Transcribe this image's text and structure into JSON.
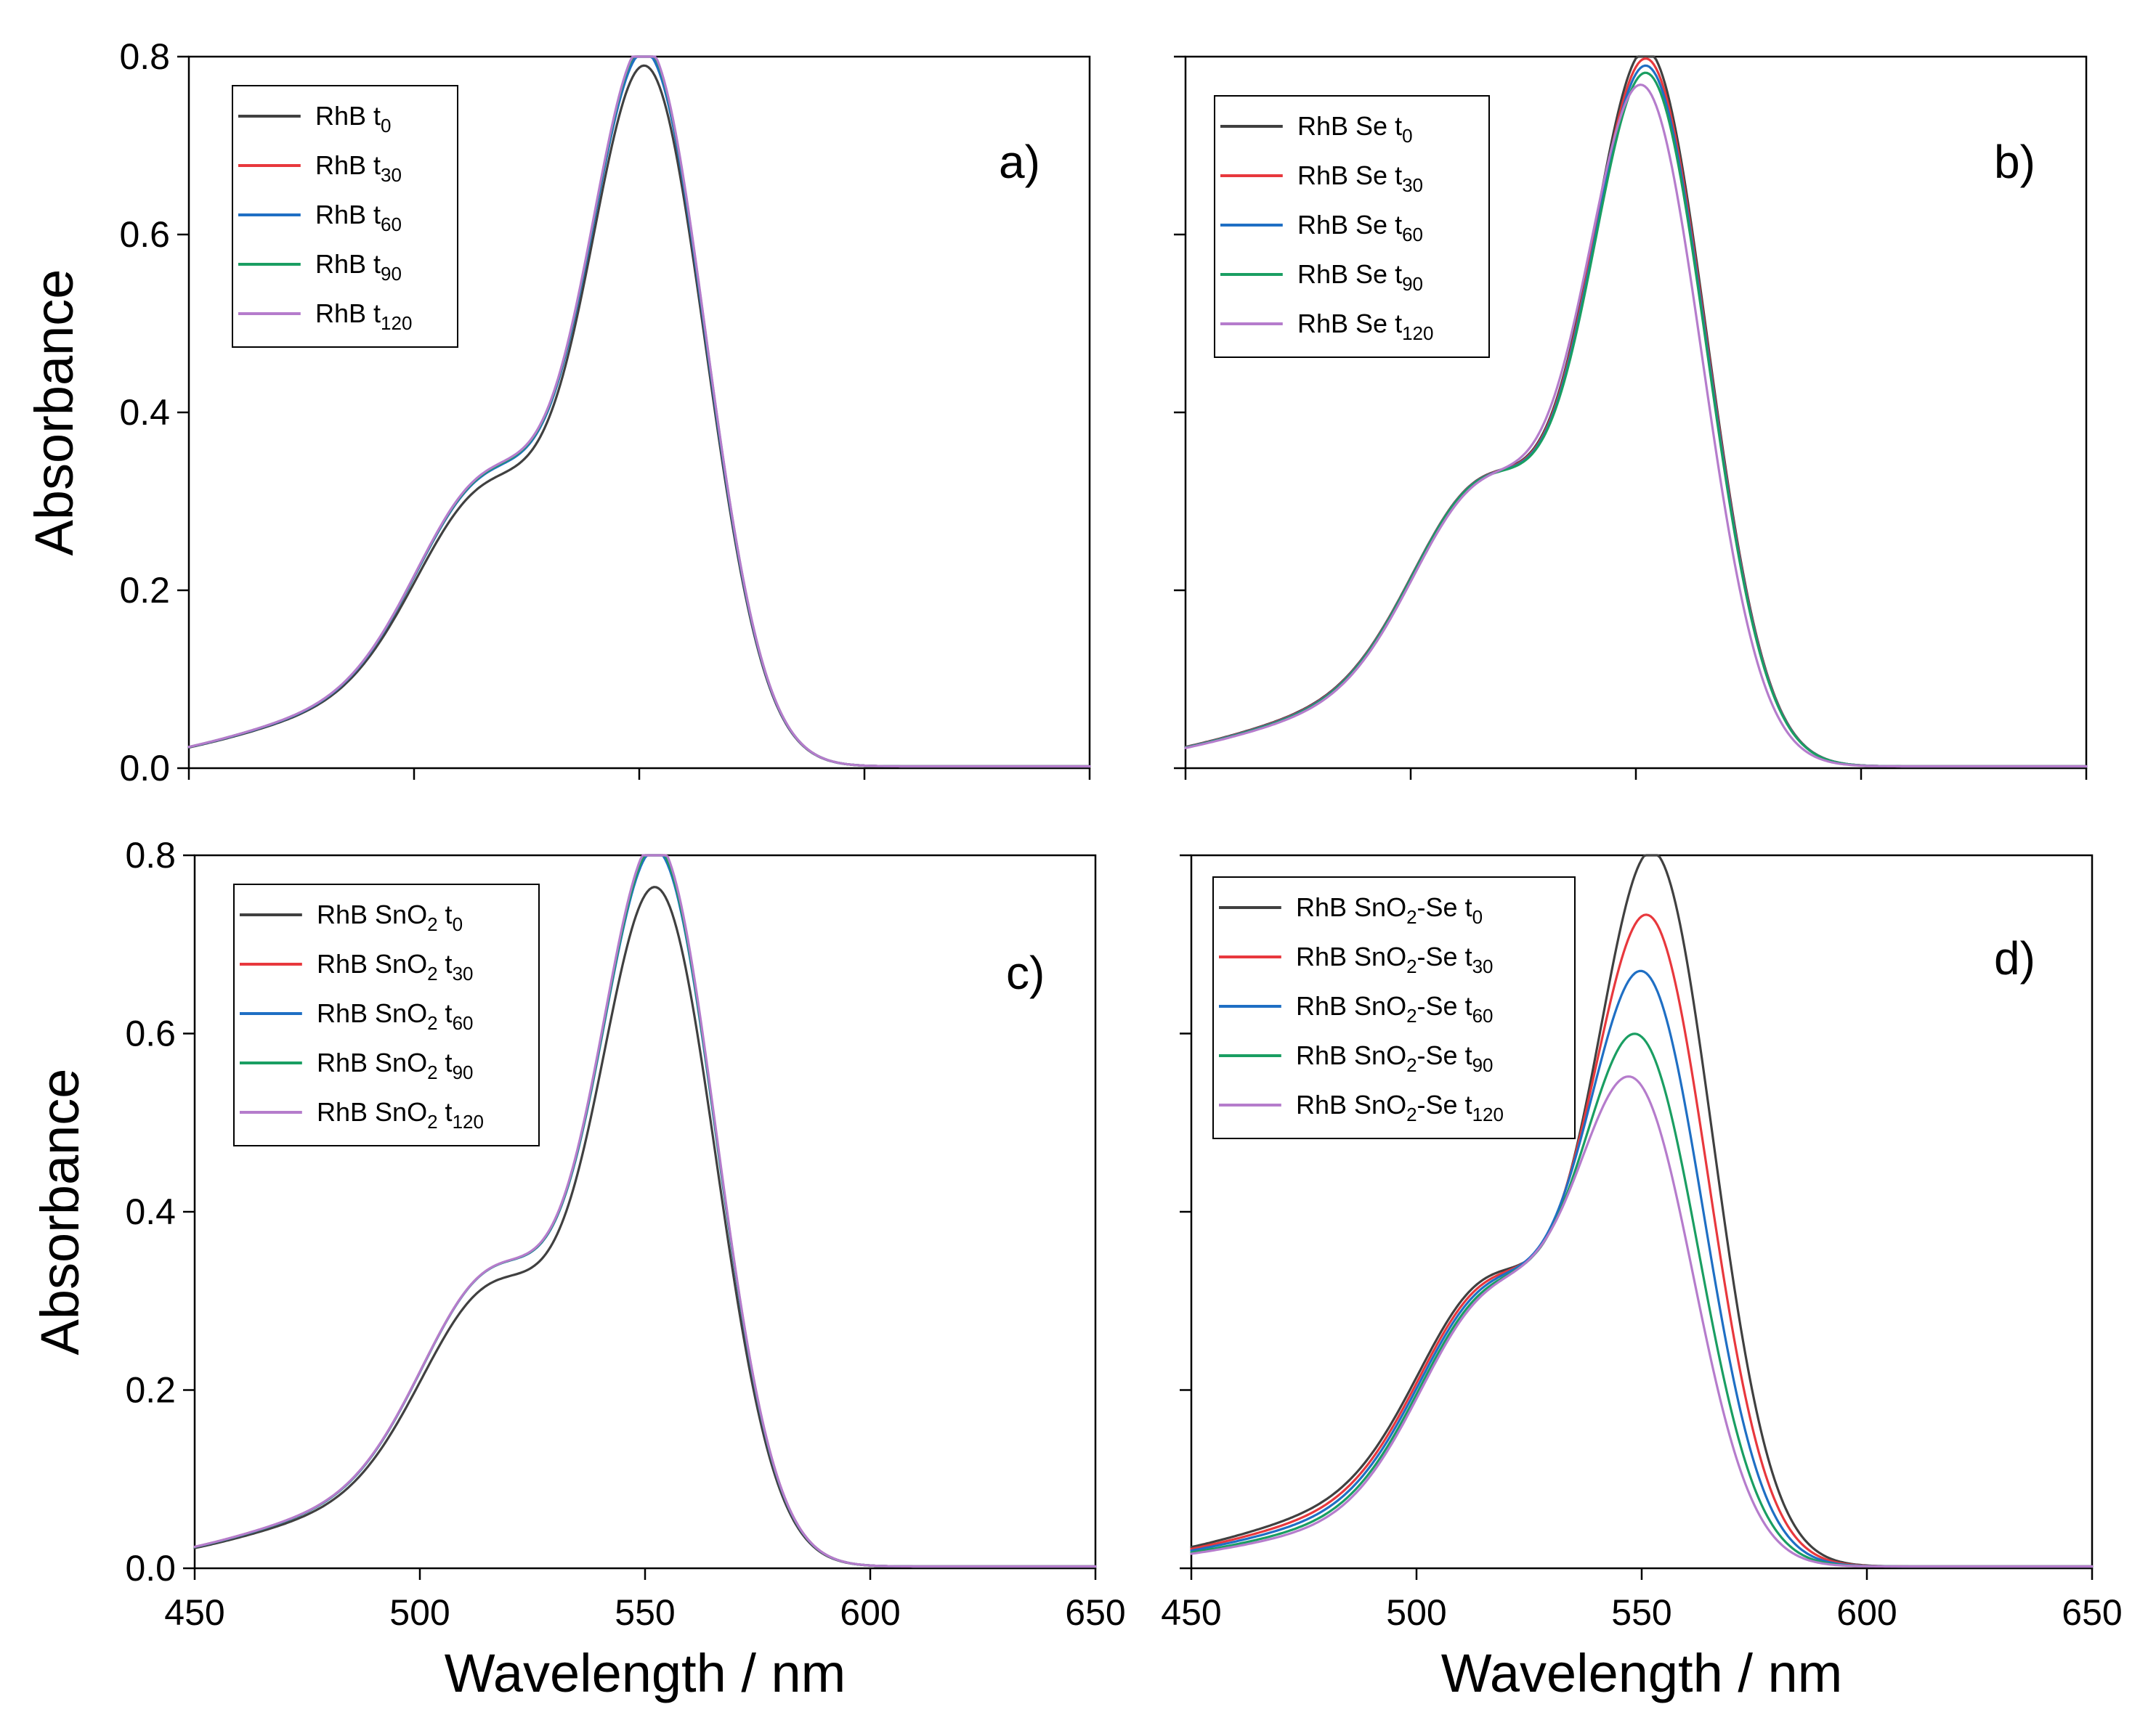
{
  "colors": {
    "t0": "#404040",
    "t30": "#e8383d",
    "t60": "#1f6fc4",
    "t90": "#1a9e62",
    "t120": "#b57ccc"
  },
  "chart_data": [
    {
      "id": "a",
      "type": "line",
      "panel_label": "a)",
      "xlabel": "",
      "ylabel": "Absorbance",
      "xlim": [
        450,
        650
      ],
      "ylim": [
        0,
        0.8
      ],
      "xticks": [
        450,
        500,
        550,
        600,
        650
      ],
      "yticks": [
        0.0,
        0.2,
        0.4,
        0.6,
        0.8
      ],
      "show_x_tick_labels": false,
      "show_y_tick_labels": true,
      "grid": false,
      "legend_position": "top-left",
      "series": [
        {
          "key": "t0",
          "name": "RhB t",
          "sub": "0",
          "color": "#404040",
          "peak_x": 552,
          "peak_y": 0.757,
          "shoulder_y": 0.285,
          "shoulder_shift": 0
        },
        {
          "key": "t30",
          "name": "RhB t",
          "sub": "30",
          "color": "#e8383d",
          "peak_x": 552,
          "peak_y": 0.776,
          "shoulder_y": 0.295,
          "shoulder_shift": 0
        },
        {
          "key": "t60",
          "name": "RhB t",
          "sub": "60",
          "color": "#1f6fc4",
          "peak_x": 552,
          "peak_y": 0.772,
          "shoulder_y": 0.295,
          "shoulder_shift": 0
        },
        {
          "key": "t90",
          "name": "RhB t",
          "sub": "90",
          "color": "#1a9e62",
          "peak_x": 552,
          "peak_y": 0.778,
          "shoulder_y": 0.296,
          "shoulder_shift": 0
        },
        {
          "key": "t120",
          "name": "RhB t",
          "sub": "120",
          "color": "#b57ccc",
          "peak_x": 552,
          "peak_y": 0.78,
          "shoulder_y": 0.297,
          "shoulder_shift": 0
        }
      ]
    },
    {
      "id": "b",
      "type": "line",
      "panel_label": "b)",
      "xlabel": "",
      "ylabel": "",
      "xlim": [
        450,
        650
      ],
      "ylim": [
        0,
        0.8
      ],
      "xticks": [
        450,
        500,
        550,
        600,
        650
      ],
      "yticks": [
        0.0,
        0.2,
        0.4,
        0.6,
        0.8
      ],
      "show_x_tick_labels": false,
      "show_y_tick_labels": false,
      "grid": false,
      "legend_position": "top-left",
      "series": [
        {
          "key": "t0",
          "name": "RhB Se t",
          "sub": "0",
          "color": "#404040",
          "peak_x": 553,
          "peak_y": 0.778,
          "shoulder_y": 0.29,
          "shoulder_shift": 0
        },
        {
          "key": "t30",
          "name": "RhB Se t",
          "sub": "30",
          "color": "#e8383d",
          "peak_x": 553,
          "peak_y": 0.768,
          "shoulder_y": 0.29,
          "shoulder_shift": 0
        },
        {
          "key": "t60",
          "name": "RhB Se t",
          "sub": "60",
          "color": "#1f6fc4",
          "peak_x": 553,
          "peak_y": 0.76,
          "shoulder_y": 0.29,
          "shoulder_shift": 0
        },
        {
          "key": "t90",
          "name": "RhB Se t",
          "sub": "90",
          "color": "#1a9e62",
          "peak_x": 553,
          "peak_y": 0.752,
          "shoulder_y": 0.29,
          "shoulder_shift": 0
        },
        {
          "key": "t120",
          "name": "RhB Se t",
          "sub": "120",
          "color": "#b57ccc",
          "peak_x": 552,
          "peak_y": 0.735,
          "shoulder_y": 0.29,
          "shoulder_shift": 0
        }
      ]
    },
    {
      "id": "c",
      "type": "line",
      "panel_label": "c)",
      "xlabel": "Wavelength / nm",
      "ylabel": "Absorbance",
      "xlim": [
        450,
        650
      ],
      "ylim": [
        0,
        0.8
      ],
      "xticks": [
        450,
        500,
        550,
        600,
        650
      ],
      "yticks": [
        0.0,
        0.2,
        0.4,
        0.6,
        0.8
      ],
      "show_x_tick_labels": true,
      "show_y_tick_labels": true,
      "grid": false,
      "legend_position": "top-left",
      "series": [
        {
          "key": "t0",
          "name": "RhB SnO",
          "sub2": "2",
          "mid": " t",
          "sub": "0",
          "color": "#404040",
          "peak_x": 553,
          "peak_y": 0.735,
          "shoulder_y": 0.285,
          "shoulder_shift": 0
        },
        {
          "key": "t30",
          "name": "RhB SnO",
          "sub2": "2",
          "mid": " t",
          "sub": "30",
          "color": "#e8383d",
          "peak_x": 553,
          "peak_y": 0.782,
          "shoulder_y": 0.3,
          "shoulder_shift": 0
        },
        {
          "key": "t60",
          "name": "RhB SnO",
          "sub2": "2",
          "mid": " t",
          "sub": "60",
          "color": "#1f6fc4",
          "peak_x": 553,
          "peak_y": 0.776,
          "shoulder_y": 0.3,
          "shoulder_shift": 0
        },
        {
          "key": "t90",
          "name": "RhB SnO",
          "sub2": "2",
          "mid": " t",
          "sub": "90",
          "color": "#1a9e62",
          "peak_x": 553,
          "peak_y": 0.78,
          "shoulder_y": 0.3,
          "shoulder_shift": 0
        },
        {
          "key": "t120",
          "name": "RhB SnO",
          "sub2": "2",
          "mid": " t",
          "sub": "120",
          "color": "#b57ccc",
          "peak_x": 553,
          "peak_y": 0.785,
          "shoulder_y": 0.3,
          "shoulder_shift": 0
        }
      ]
    },
    {
      "id": "d",
      "type": "line",
      "panel_label": "d)",
      "xlabel": "Wavelength / nm",
      "ylabel": "",
      "xlim": [
        450,
        650
      ],
      "ylim": [
        0,
        0.8
      ],
      "xticks": [
        450,
        500,
        550,
        600,
        650
      ],
      "yticks": [
        0.0,
        0.2,
        0.4,
        0.6,
        0.8
      ],
      "show_x_tick_labels": true,
      "show_y_tick_labels": false,
      "grid": false,
      "legend_position": "top-left",
      "series": [
        {
          "key": "t0",
          "name": "RhB SnO",
          "sub2": "2",
          "mid": "-Se t",
          "sub": "0",
          "color": "#404040",
          "peak_x": 553,
          "peak_y": 0.775,
          "shoulder_y": 0.29,
          "shoulder_shift": 0
        },
        {
          "key": "t30",
          "name": "RhB SnO",
          "sub2": "2",
          "mid": "-Se t",
          "sub": "30",
          "color": "#e8383d",
          "peak_x": 552,
          "peak_y": 0.7,
          "shoulder_y": 0.29,
          "shoulder_shift": 0
        },
        {
          "key": "t60",
          "name": "RhB SnO",
          "sub2": "2",
          "mid": "-Se t",
          "sub": "60",
          "color": "#1f6fc4",
          "peak_x": 551,
          "peak_y": 0.633,
          "shoulder_y": 0.29,
          "shoulder_shift": 0
        },
        {
          "key": "t90",
          "name": "RhB SnO",
          "sub2": "2",
          "mid": "-Se t",
          "sub": "90",
          "color": "#1a9e62",
          "peak_x": 550,
          "peak_y": 0.558,
          "shoulder_y": 0.29,
          "shoulder_shift": 0
        },
        {
          "key": "t120",
          "name": "RhB SnO",
          "sub2": "2",
          "mid": "-Se t",
          "sub": "120",
          "color": "#b57ccc",
          "peak_x": 549,
          "peak_y": 0.505,
          "shoulder_y": 0.29,
          "shoulder_shift": 0
        }
      ]
    }
  ]
}
